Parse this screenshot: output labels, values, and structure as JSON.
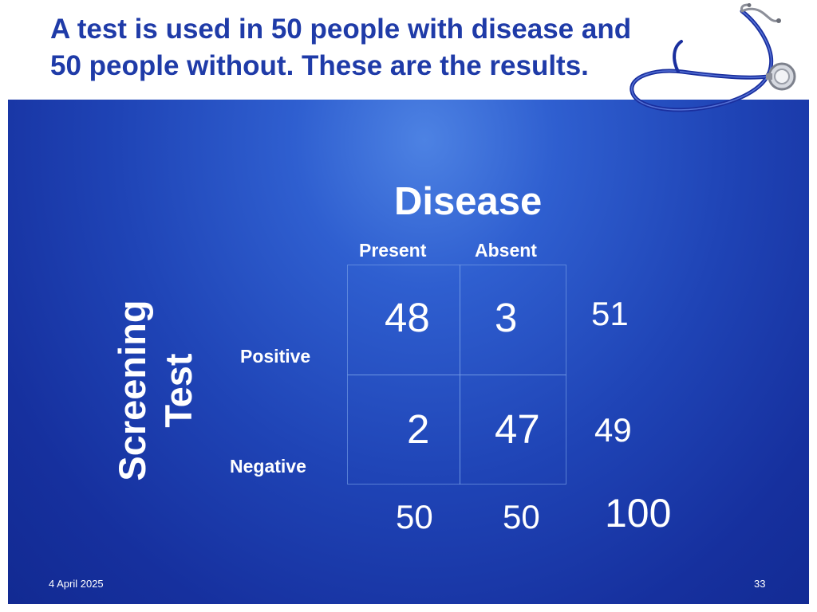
{
  "slide": {
    "title_line1": "A test is used in 50 people with disease and",
    "title_line2": "50 people without.  These are the results.",
    "decorative_image": "stethoscope-icon",
    "colors": {
      "title_text": "#1f3ba8",
      "panel_center": "#4d82e3",
      "panel_edge": "#122a92",
      "text": "#ffffff"
    }
  },
  "table": {
    "column_group_label": "Disease",
    "column_labels": [
      "Present",
      "Absent"
    ],
    "row_group_label_line1": "Screening",
    "row_group_label_line2": "Test",
    "row_labels": [
      "Positive",
      "Negative"
    ],
    "cells": [
      [
        "48",
        "3"
      ],
      [
        "2",
        "47"
      ]
    ],
    "row_totals": [
      "51",
      "49"
    ],
    "column_totals": [
      "50",
      "50"
    ],
    "grand_total": "100"
  },
  "footer": {
    "date": "4 April 2025",
    "page_number": "33"
  }
}
